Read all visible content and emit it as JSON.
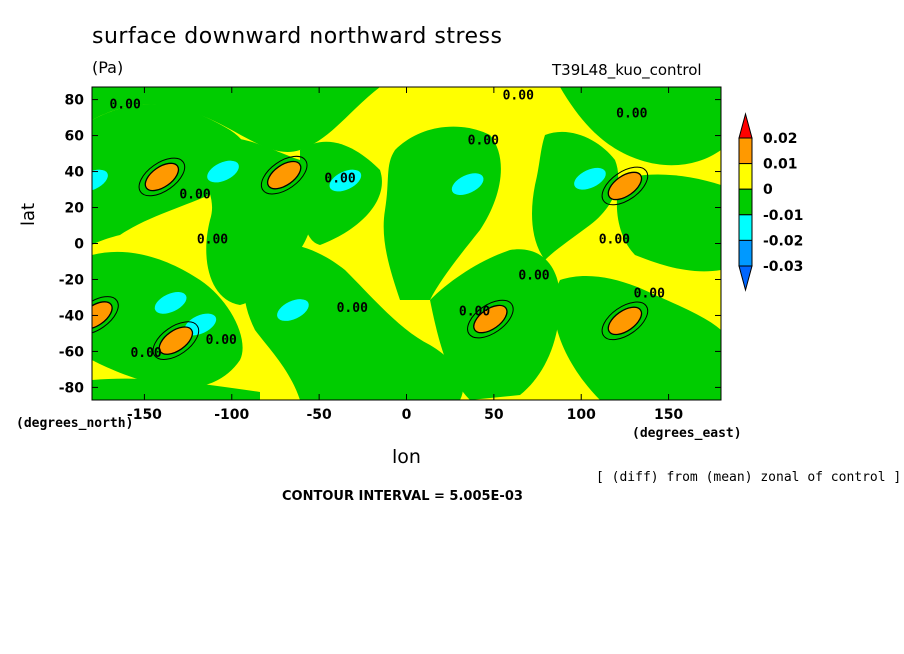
{
  "chart_data": {
    "type": "contour",
    "title": "surface downward northward stress",
    "units": "(Pa)",
    "run_label": "T39L48_kuo_control",
    "xlabel": "lon",
    "ylabel": "lat",
    "x_units": "(degrees_east)",
    "y_units": "(degrees_north)",
    "xlim": [
      -180,
      180
    ],
    "ylim": [
      -87,
      87
    ],
    "x_ticks": [
      -150,
      -100,
      -50,
      0,
      50,
      100,
      150
    ],
    "y_ticks": [
      80,
      60,
      40,
      20,
      0,
      -20,
      -40,
      -60,
      -80
    ],
    "x_tick_labels": [
      "-150",
      "-100",
      "-50",
      "0",
      "50",
      "100",
      "150"
    ],
    "y_tick_labels": [
      "80",
      "60",
      "40",
      "20",
      "0",
      "-20",
      "-40",
      "-60",
      "-80"
    ],
    "colorbar": {
      "levels": [
        "0.02",
        "0.01",
        "0",
        "-0.01",
        "-0.02",
        "-0.03"
      ],
      "colors": [
        "#ff0000",
        "#ff9900",
        "#ffff00",
        "#00cc00",
        "#00ffff",
        "#0099ff",
        "#0066ff"
      ]
    },
    "contour_labels": [
      "0.00",
      "0.00",
      "0.00",
      "0.00",
      "0.00",
      "0.00",
      "0.00",
      "0.00",
      "0.00",
      "0.00",
      "0.00",
      "0.00",
      "0.00",
      "0.00"
    ],
    "positive_centers": [
      {
        "lon": -140,
        "lat": 37
      },
      {
        "lon": -70,
        "lat": 38
      },
      {
        "lon": 125,
        "lat": 32
      },
      {
        "lon": 48,
        "lat": -42
      },
      {
        "lon": 125,
        "lat": -43
      },
      {
        "lon": -178,
        "lat": -40
      },
      {
        "lon": -132,
        "lat": -54
      }
    ],
    "negative_centers": [
      {
        "lon": -105,
        "lat": 40
      },
      {
        "lon": -35,
        "lat": 35
      },
      {
        "lon": 35,
        "lat": 33
      },
      {
        "lon": 105,
        "lat": 36
      },
      {
        "lon": -180,
        "lat": 35
      },
      {
        "lon": -135,
        "lat": -33
      },
      {
        "lon": -118,
        "lat": -45
      },
      {
        "lon": -65,
        "lat": -37
      }
    ],
    "contour_interval_note": "CONTOUR INTERVAL = 5.005E-03",
    "diff_note": "[ (diff) from (mean) zonal of control ]"
  }
}
